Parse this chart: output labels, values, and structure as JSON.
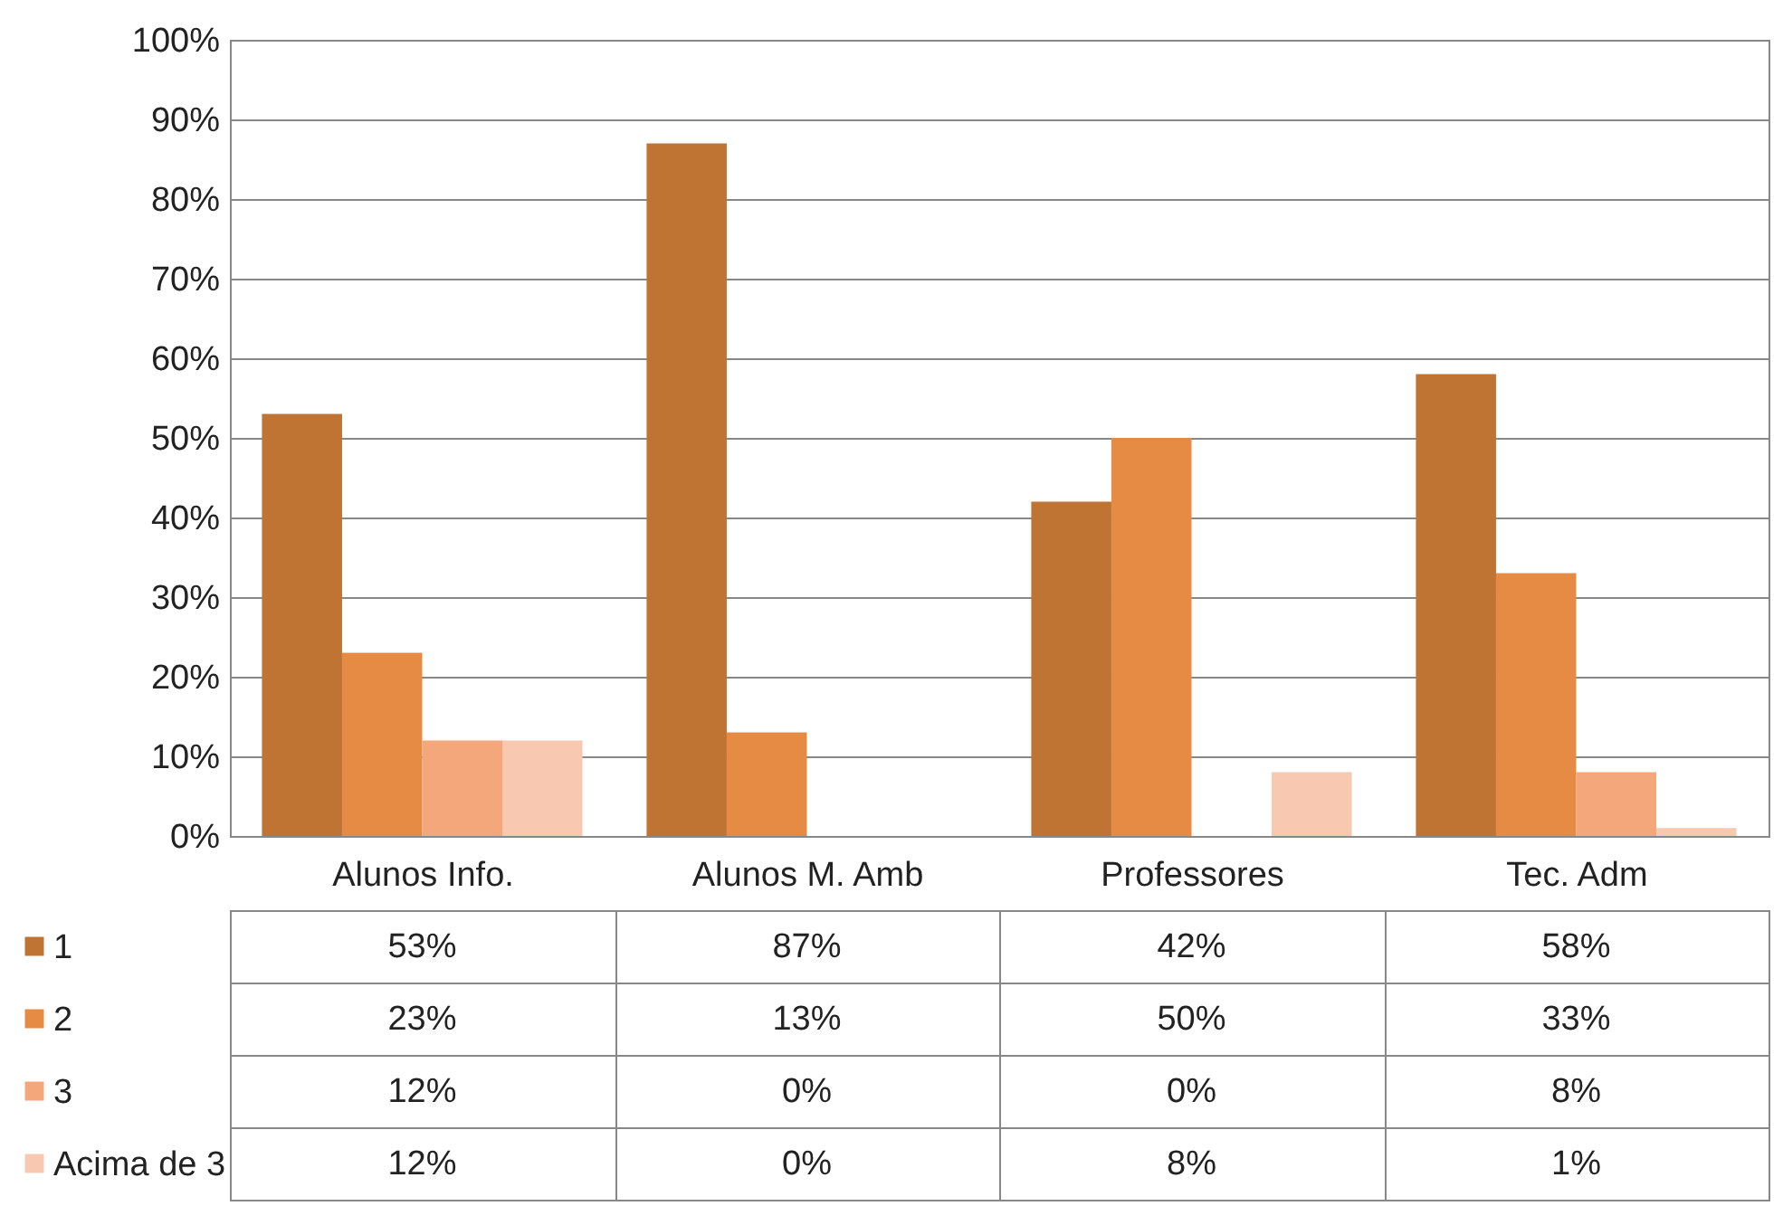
{
  "chart_data": {
    "type": "bar",
    "categories": [
      "Alunos Info.",
      "Alunos M. Amb",
      "Professores",
      "Tec. Adm"
    ],
    "series": [
      {
        "name": "1",
        "color": "#c07434",
        "values": [
          53,
          87,
          42,
          58
        ],
        "value_labels": [
          "53%",
          "87%",
          "42%",
          "58%"
        ]
      },
      {
        "name": "2",
        "color": "#e68b44",
        "values": [
          23,
          13,
          50,
          33
        ],
        "value_labels": [
          "23%",
          "13%",
          "50%",
          "33%"
        ]
      },
      {
        "name": "3",
        "color": "#f4a77a",
        "values": [
          12,
          0,
          0,
          8
        ],
        "value_labels": [
          "12%",
          "0%",
          "0%",
          "8%"
        ]
      },
      {
        "name": "Acima de 3",
        "color": "#f8c9b0",
        "values": [
          12,
          0,
          8,
          1
        ],
        "value_labels": [
          "12%",
          "0%",
          "8%",
          "1%"
        ]
      }
    ],
    "ylim": [
      0,
      100
    ],
    "yticks": [
      {
        "value": 0,
        "label": "0%"
      },
      {
        "value": 10,
        "label": "10%"
      },
      {
        "value": 20,
        "label": "20%"
      },
      {
        "value": 30,
        "label": "30%"
      },
      {
        "value": 40,
        "label": "40%"
      },
      {
        "value": 50,
        "label": "50%"
      },
      {
        "value": 60,
        "label": "60%"
      },
      {
        "value": 70,
        "label": "70%"
      },
      {
        "value": 80,
        "label": "80%"
      },
      {
        "value": 90,
        "label": "90%"
      },
      {
        "value": 100,
        "label": "100%"
      }
    ],
    "grid": "y",
    "legend": "bottom left"
  }
}
